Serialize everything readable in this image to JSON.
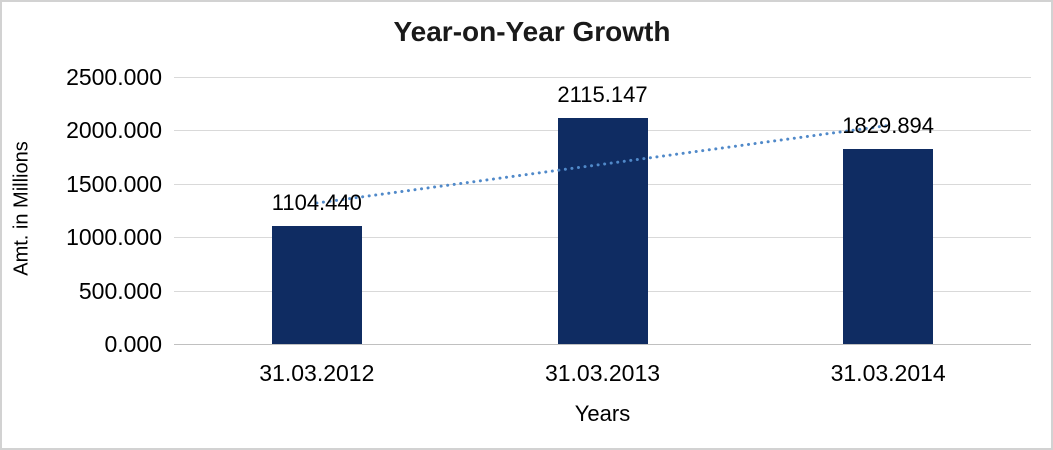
{
  "window": {
    "background_color": "#ffffff",
    "border_color": "#d2d2d2"
  },
  "chart_data": {
    "type": "bar",
    "title": "Year-on-Year Growth",
    "xlabel": "Years",
    "ylabel": "Amt. in Millions",
    "categories": [
      "31.03.2012",
      "31.03.2013",
      "31.03.2014"
    ],
    "values": [
      1104.44,
      2115.147,
      1829.894
    ],
    "value_labels": [
      "1104.440",
      "2115.147",
      "1829.894"
    ],
    "ylim": [
      0,
      2500
    ],
    "yticks": [
      {
        "value": 0,
        "label": "0.000"
      },
      {
        "value": 500,
        "label": "500.000"
      },
      {
        "value": 1000,
        "label": "1000.000"
      },
      {
        "value": 1500,
        "label": "1500.000"
      },
      {
        "value": 2000,
        "label": "2000.000"
      },
      {
        "value": 2500,
        "label": "2500.000"
      }
    ],
    "grid": "horizontal",
    "legend": "none",
    "bar_color": "#0f2c62",
    "gridline_color": "#d9d9d9",
    "axis_line_color": "#c0c0c0",
    "title_color": "#1a1a1a",
    "text_color": "#000000",
    "trendline": {
      "type": "linear",
      "style": "dotted",
      "color": "#5089c9",
      "start_value": 1320,
      "end_value": 2046
    }
  }
}
